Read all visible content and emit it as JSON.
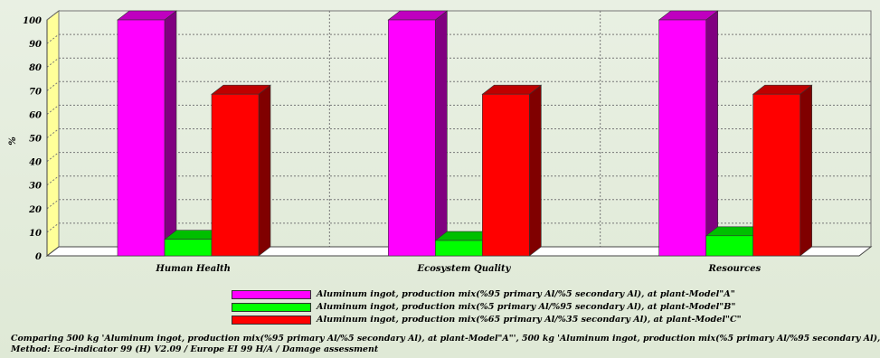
{
  "chart_data": {
    "type": "bar",
    "ylabel": "%",
    "ylim": [
      0,
      100
    ],
    "yticks": [
      "0",
      "10",
      "20",
      "30",
      "40",
      "50",
      "60",
      "70",
      "80",
      "90",
      "100"
    ],
    "categories": [
      "Human Health",
      "Ecosystem Quality",
      "Resources"
    ],
    "grid": true,
    "series": [
      {
        "name": "Aluminum ingot, production mix(%95 primary Al/%5 secondary Al), at plant-Model\"A\"",
        "color": "#ff00ff",
        "values": [
          100,
          100,
          100
        ]
      },
      {
        "name": "Aluminum ingot, production mix(%5 primary Al/%95 secondary Al), at plant-Model\"B\"",
        "color": "#00ff00",
        "values": [
          7,
          6.5,
          8.5
        ]
      },
      {
        "name": "Aluminum ingot, production mix(%65 primary Al/%35 secondary Al), at plant-Model\"C\"",
        "color": "#ff0000",
        "values": [
          68.5,
          68.5,
          68.5
        ]
      }
    ]
  },
  "footer": {
    "line1": "Comparing 500 kg 'Aluminum ingot, production mix(%95 primary Al/%5 secondary Al), at plant-Model\"A\"', 500 kg 'Aluminum ingot, production mix(%5 primary Al/%95 secondary Al),",
    "line2": "Method: Eco-indicator 99 (H) V2.09 / Europe EI 99 H/A / Damage assessment"
  }
}
